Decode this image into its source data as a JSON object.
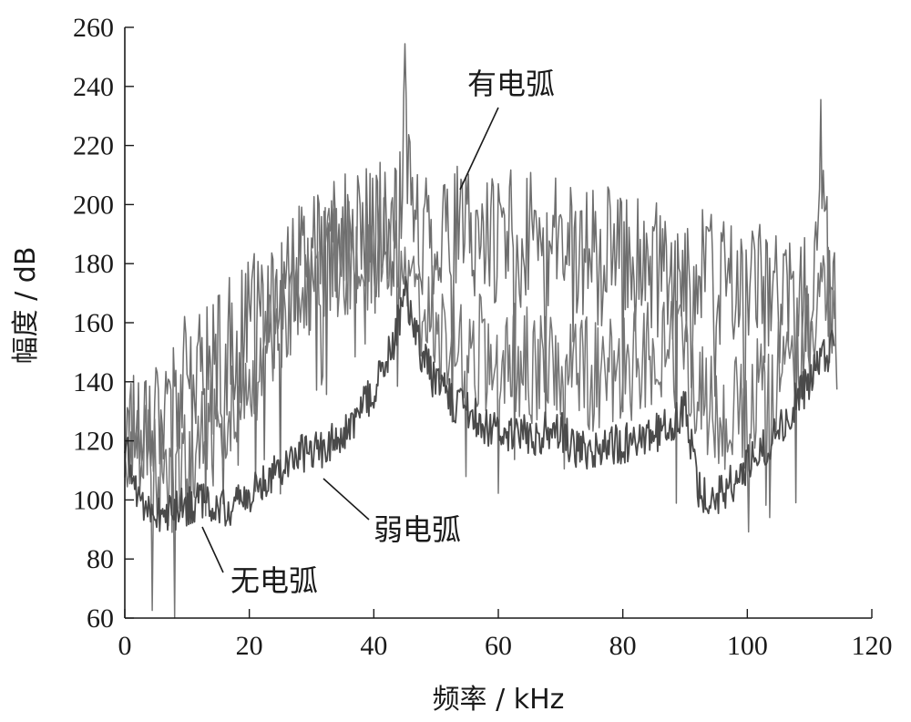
{
  "chart_data": {
    "type": "line",
    "title": "",
    "xlabel": "频率 / kHz",
    "ylabel": "幅度 / dB",
    "xlim": [
      0,
      120
    ],
    "ylim": [
      60,
      260
    ],
    "x_ticks": [
      0,
      20,
      40,
      60,
      80,
      100,
      120
    ],
    "y_ticks": [
      60,
      80,
      100,
      120,
      140,
      160,
      180,
      200,
      220,
      240,
      260
    ],
    "grid": false,
    "legend": "none",
    "series": [
      {
        "name": "有电弧",
        "color": "#6e6e6e",
        "x": [
          0,
          2,
          4,
          6,
          8,
          10,
          12,
          14,
          16,
          18,
          20,
          22,
          24,
          26,
          28,
          30,
          32,
          34,
          36,
          38,
          40,
          42,
          44,
          45,
          46,
          48,
          50,
          52,
          54,
          56,
          58,
          60,
          62,
          64,
          66,
          68,
          70,
          72,
          74,
          76,
          78,
          80,
          82,
          84,
          86,
          88,
          90,
          92,
          94,
          96,
          98,
          100,
          102,
          104,
          106,
          108,
          110,
          112,
          113,
          114,
          114.5
        ],
        "y": [
          120,
          125,
          130,
          133,
          136,
          139,
          142,
          146,
          150,
          154,
          158,
          163,
          168,
          172,
          176,
          180,
          183,
          186,
          188,
          190,
          190,
          191,
          192,
          240,
          192,
          192,
          191,
          191,
          190,
          190,
          190,
          189,
          189,
          188,
          188,
          187,
          186,
          185,
          184,
          183,
          182,
          181,
          180,
          179,
          178,
          177,
          176,
          175,
          174,
          173,
          172,
          171,
          170,
          169,
          168,
          167,
          166,
          219,
          170,
          165,
          150
        ]
      },
      {
        "name": "弱电弧",
        "color": "#777777",
        "x": [
          0,
          2,
          4,
          6,
          8,
          10,
          12,
          14,
          16,
          18,
          20,
          22,
          24,
          26,
          28,
          30,
          32,
          34,
          36,
          38,
          40,
          42,
          44,
          46,
          48,
          50,
          52,
          54,
          56,
          58,
          60,
          62,
          64,
          66,
          68,
          70,
          72,
          74,
          76,
          78,
          80,
          82,
          84,
          86,
          88,
          90,
          92,
          94,
          96,
          98,
          100,
          102,
          104,
          106,
          108,
          110,
          112,
          114
        ],
        "y": [
          125,
          118,
          112,
          108,
          106,
          112,
          118,
          124,
          130,
          136,
          142,
          150,
          158,
          166,
          172,
          176,
          178,
          180,
          182,
          183,
          184,
          186,
          190,
          170,
          164,
          160,
          157,
          154,
          152,
          150,
          148,
          147,
          146,
          145,
          144,
          143,
          142,
          143,
          144,
          145,
          146,
          147,
          148,
          149,
          150,
          151,
          140,
          132,
          130,
          131,
          133,
          136,
          140,
          146,
          152,
          158,
          164,
          168
        ]
      },
      {
        "name": "无电弧",
        "color": "#4a4a4a",
        "x": [
          0,
          2,
          4,
          6,
          8,
          10,
          12,
          14,
          16,
          18,
          20,
          22,
          24,
          26,
          28,
          30,
          32,
          34,
          36,
          38,
          40,
          42,
          44,
          45,
          46,
          48,
          50,
          52,
          54,
          56,
          58,
          60,
          62,
          64,
          66,
          68,
          70,
          72,
          74,
          76,
          78,
          80,
          82,
          84,
          86,
          88,
          90,
          92,
          94,
          96,
          98,
          100,
          102,
          104,
          106,
          108,
          110,
          112,
          114
        ],
        "y": [
          118,
          102,
          97,
          95,
          96,
          98,
          100,
          98,
          97,
          99,
          101,
          106,
          110,
          113,
          116,
          117,
          118,
          120,
          124,
          130,
          137,
          146,
          160,
          175,
          160,
          147,
          140,
          135,
          131,
          128,
          125,
          123,
          122,
          122,
          122,
          123,
          124,
          118,
          117,
          117,
          118,
          119,
          120,
          121,
          123,
          126,
          132,
          105,
          100,
          103,
          107,
          112,
          116,
          121,
          127,
          134,
          140,
          148,
          152
        ]
      }
    ],
    "annotations": [
      {
        "text": "有电弧",
        "series": "有电弧"
      },
      {
        "text": "弱电弧",
        "series": "弱电弧"
      },
      {
        "text": "无电弧",
        "series": "无电弧"
      }
    ]
  }
}
